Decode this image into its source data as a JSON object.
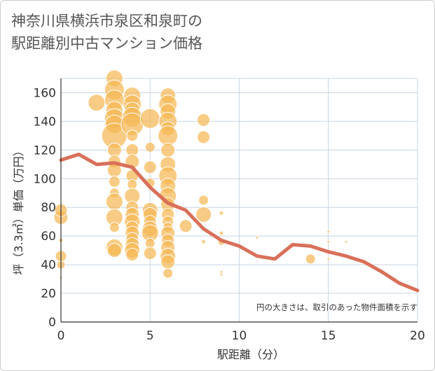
{
  "title_line1": "神奈川県横浜市泉区和泉町の",
  "title_line2": "駅距離別中古マンション価格",
  "chart_data": {
    "type": "scatter",
    "xlabel": "駅距離（分）",
    "ylabel": "坪（3.3㎡）単価（万円）",
    "xlim": [
      0,
      20
    ],
    "ylim": [
      0,
      170
    ],
    "xticks": [
      0,
      5,
      10,
      15,
      20
    ],
    "yticks": [
      0,
      20,
      40,
      60,
      80,
      100,
      120,
      140,
      160
    ],
    "grid": true,
    "note": "円の大きさは、取引のあった物件面積を示す",
    "colors": {
      "bubble": "#f5b651",
      "trend": "#d9705a",
      "grid": "#c8d4e0",
      "axis": "#333333"
    },
    "points": [
      {
        "x": 0,
        "y": 31,
        "r": 2
      },
      {
        "x": 0,
        "y": 40,
        "r": 6
      },
      {
        "x": 0,
        "y": 46,
        "r": 8
      },
      {
        "x": 0,
        "y": 57,
        "r": 3
      },
      {
        "x": 0,
        "y": 73,
        "r": 10
      },
      {
        "x": 0,
        "y": 78,
        "r": 9
      },
      {
        "x": 2,
        "y": 153,
        "r": 12
      },
      {
        "x": 3,
        "y": 170,
        "r": 12
      },
      {
        "x": 3,
        "y": 162,
        "r": 14
      },
      {
        "x": 3,
        "y": 155,
        "r": 14
      },
      {
        "x": 3,
        "y": 148,
        "r": 12
      },
      {
        "x": 3,
        "y": 142,
        "r": 14
      },
      {
        "x": 3,
        "y": 138,
        "r": 13
      },
      {
        "x": 3,
        "y": 130,
        "r": 18
      },
      {
        "x": 3,
        "y": 120,
        "r": 10
      },
      {
        "x": 3,
        "y": 112,
        "r": 9
      },
      {
        "x": 3,
        "y": 106,
        "r": 10
      },
      {
        "x": 3,
        "y": 98,
        "r": 8
      },
      {
        "x": 3,
        "y": 90,
        "r": 7
      },
      {
        "x": 3,
        "y": 84,
        "r": 12
      },
      {
        "x": 3,
        "y": 73,
        "r": 12
      },
      {
        "x": 3,
        "y": 66,
        "r": 7
      },
      {
        "x": 3,
        "y": 52,
        "r": 12
      },
      {
        "x": 3,
        "y": 50,
        "r": 10
      },
      {
        "x": 4,
        "y": 158,
        "r": 12
      },
      {
        "x": 4,
        "y": 152,
        "r": 13
      },
      {
        "x": 4,
        "y": 148,
        "r": 11
      },
      {
        "x": 4,
        "y": 143,
        "r": 14
      },
      {
        "x": 4,
        "y": 138,
        "r": 16
      },
      {
        "x": 4,
        "y": 130,
        "r": 8
      },
      {
        "x": 4,
        "y": 120,
        "r": 9
      },
      {
        "x": 4,
        "y": 112,
        "r": 10
      },
      {
        "x": 4,
        "y": 102,
        "r": 9
      },
      {
        "x": 4,
        "y": 96,
        "r": 7
      },
      {
        "x": 4,
        "y": 88,
        "r": 11
      },
      {
        "x": 4,
        "y": 80,
        "r": 9
      },
      {
        "x": 4,
        "y": 75,
        "r": 10
      },
      {
        "x": 4,
        "y": 70,
        "r": 11
      },
      {
        "x": 4,
        "y": 66,
        "r": 9
      },
      {
        "x": 4,
        "y": 62,
        "r": 10
      },
      {
        "x": 4,
        "y": 58,
        "r": 9
      },
      {
        "x": 4,
        "y": 54,
        "r": 10
      },
      {
        "x": 4,
        "y": 50,
        "r": 11
      },
      {
        "x": 4,
        "y": 47,
        "r": 9
      },
      {
        "x": 5,
        "y": 142,
        "r": 14
      },
      {
        "x": 5,
        "y": 122,
        "r": 7
      },
      {
        "x": 5,
        "y": 108,
        "r": 9
      },
      {
        "x": 5,
        "y": 97,
        "r": 7
      },
      {
        "x": 5,
        "y": 78,
        "r": 11
      },
      {
        "x": 5,
        "y": 75,
        "r": 10
      },
      {
        "x": 5,
        "y": 70,
        "r": 9
      },
      {
        "x": 5,
        "y": 65,
        "r": 11
      },
      {
        "x": 5,
        "y": 62,
        "r": 12
      },
      {
        "x": 5,
        "y": 55,
        "r": 7
      },
      {
        "x": 5,
        "y": 48,
        "r": 9
      },
      {
        "x": 6,
        "y": 158,
        "r": 11
      },
      {
        "x": 6,
        "y": 152,
        "r": 13
      },
      {
        "x": 6,
        "y": 147,
        "r": 11
      },
      {
        "x": 6,
        "y": 140,
        "r": 13
      },
      {
        "x": 6,
        "y": 135,
        "r": 10
      },
      {
        "x": 6,
        "y": 130,
        "r": 14
      },
      {
        "x": 6,
        "y": 120,
        "r": 10
      },
      {
        "x": 6,
        "y": 110,
        "r": 11
      },
      {
        "x": 6,
        "y": 102,
        "r": 13
      },
      {
        "x": 6,
        "y": 95,
        "r": 11
      },
      {
        "x": 6,
        "y": 88,
        "r": 12
      },
      {
        "x": 6,
        "y": 82,
        "r": 10
      },
      {
        "x": 6,
        "y": 75,
        "r": 9
      },
      {
        "x": 6,
        "y": 70,
        "r": 8
      },
      {
        "x": 6,
        "y": 66,
        "r": 7
      },
      {
        "x": 6,
        "y": 62,
        "r": 10
      },
      {
        "x": 6,
        "y": 57,
        "r": 9
      },
      {
        "x": 6,
        "y": 52,
        "r": 10
      },
      {
        "x": 6,
        "y": 46,
        "r": 11
      },
      {
        "x": 6,
        "y": 42,
        "r": 10
      },
      {
        "x": 6,
        "y": 34,
        "r": 7
      },
      {
        "x": 7,
        "y": 67,
        "r": 9
      },
      {
        "x": 8,
        "y": 141,
        "r": 9
      },
      {
        "x": 8,
        "y": 129,
        "r": 9
      },
      {
        "x": 8,
        "y": 85,
        "r": 7
      },
      {
        "x": 8,
        "y": 75,
        "r": 11
      },
      {
        "x": 8,
        "y": 56,
        "r": 3
      },
      {
        "x": 9,
        "y": 76,
        "r": 3
      },
      {
        "x": 9,
        "y": 62,
        "r": 3
      },
      {
        "x": 9,
        "y": 56,
        "r": 5
      },
      {
        "x": 9,
        "y": 35,
        "r": 2
      },
      {
        "x": 9,
        "y": 33,
        "r": 2
      },
      {
        "x": 11,
        "y": 59,
        "r": 2
      },
      {
        "x": 13,
        "y": 53,
        "r": 2
      },
      {
        "x": 14,
        "y": 44,
        "r": 7
      },
      {
        "x": 15,
        "y": 63,
        "r": 2
      },
      {
        "x": 15,
        "y": 56,
        "r": 2
      },
      {
        "x": 15,
        "y": 44,
        "r": 2
      },
      {
        "x": 16,
        "y": 56,
        "r": 2
      }
    ],
    "trend": {
      "x": [
        0,
        1,
        2,
        3,
        4,
        5,
        6,
        7,
        8,
        9,
        10,
        11,
        12,
        13,
        14,
        15,
        16,
        17,
        18,
        19,
        20
      ],
      "y": [
        113,
        117,
        110,
        111,
        108,
        94,
        83,
        78,
        65,
        57,
        53,
        46,
        44,
        54,
        53,
        49,
        46,
        42,
        35,
        27,
        22
      ]
    }
  }
}
